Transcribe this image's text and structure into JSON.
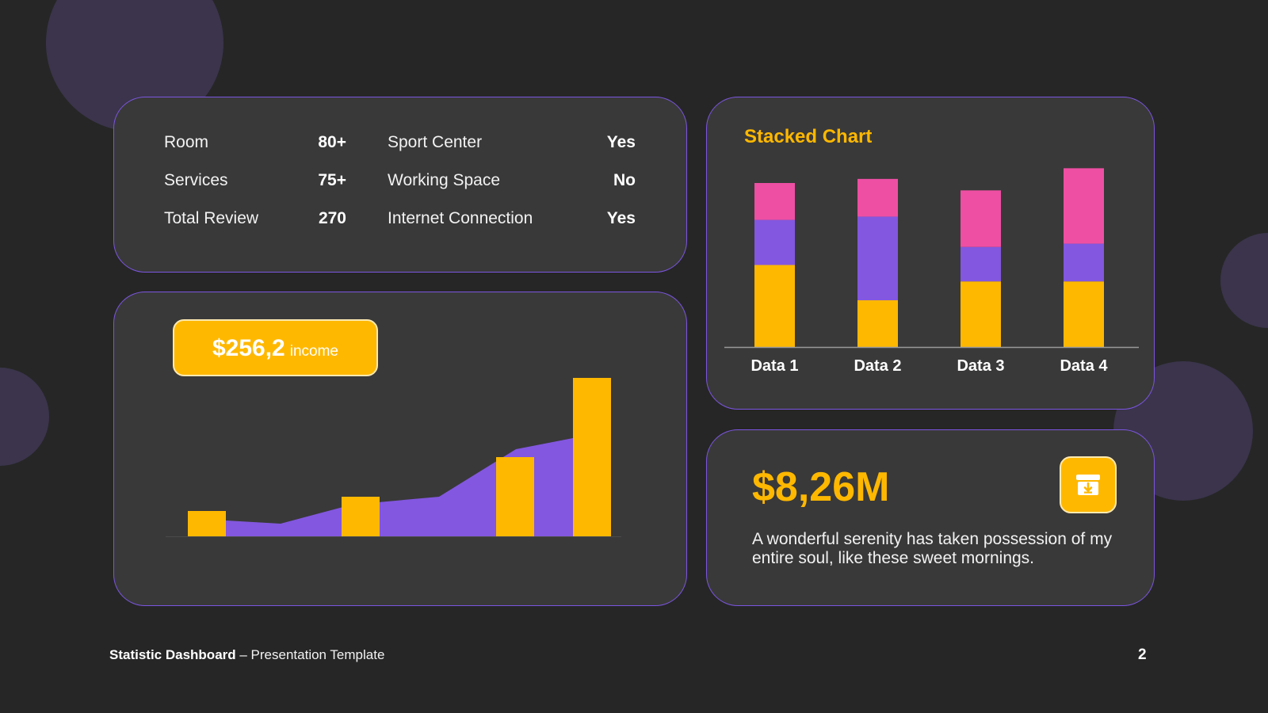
{
  "stats": {
    "left": [
      {
        "label": "Room",
        "value": "80+"
      },
      {
        "label": "Services",
        "value": "75+"
      },
      {
        "label": "Total Review",
        "value": "270"
      }
    ],
    "right": [
      {
        "label": "Sport Center",
        "value": "Yes"
      },
      {
        "label": "Working Space",
        "value": "No"
      },
      {
        "label": "Internet Connection",
        "value": "Yes"
      }
    ]
  },
  "income": {
    "amount": "$256,2",
    "unit": "income"
  },
  "revenue": {
    "value": "$8,26M",
    "description": "A wonderful serenity has taken possession of my entire soul, like these sweet mornings."
  },
  "footer": {
    "bold": "Statistic Dashboard",
    "rest": " – Presentation Template",
    "page": "2"
  },
  "colors": {
    "accent_yellow": "#ffb800",
    "accent_purple": "#8357e0",
    "accent_pink": "#ee4fa3",
    "border": "#7b55e0"
  },
  "chart_data": [
    {
      "type": "bar",
      "title": "Stacked Chart",
      "categories": [
        "Data 1",
        "Data 2",
        "Data 3",
        "Data 4"
      ],
      "series": [
        {
          "values": [
            100,
            57,
            80,
            80
          ]
        },
        {
          "values": [
            55,
            102,
            42,
            46
          ]
        },
        {
          "values": [
            45,
            46,
            69,
            92
          ]
        }
      ],
      "ylim": [
        0,
        220
      ],
      "grid": false,
      "stacked": true
    },
    {
      "type": "area",
      "title": "",
      "bars": [
        0.16,
        0,
        0.25,
        0,
        0.5,
        1.0
      ],
      "area": [
        0.1,
        0.08,
        0.2,
        0.25,
        0.55,
        0.62
      ],
      "note": "unlabeled combined bar/area chart, values relative to max"
    }
  ]
}
